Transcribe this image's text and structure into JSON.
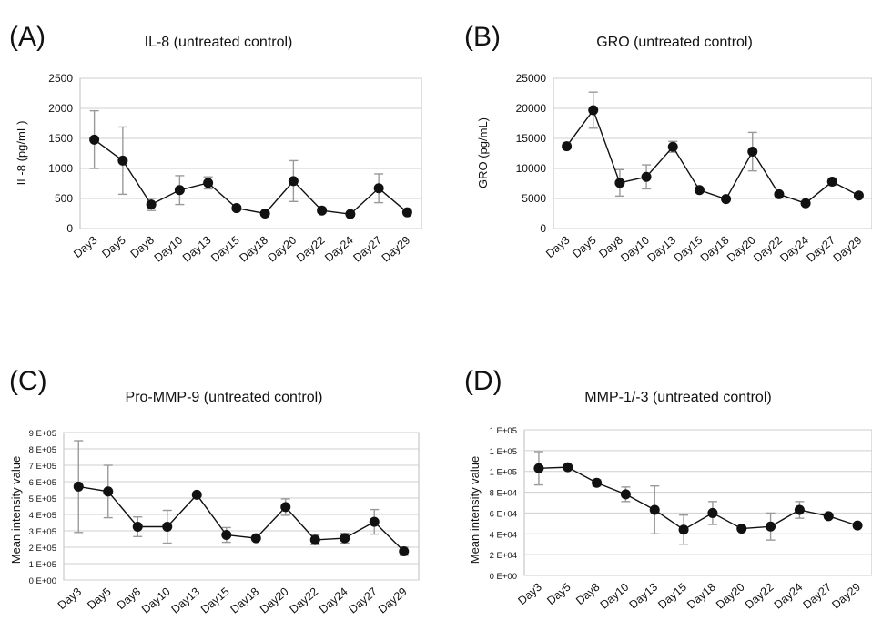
{
  "figure": {
    "panels": [
      "(A)",
      "(B)",
      "(C)",
      "(D)"
    ]
  },
  "chart_data": [
    {
      "type": "line",
      "panel": "(A)",
      "title": "IL-8 (untreated control)",
      "xlabel": "",
      "ylabel": "IL-8 (pg/mL)",
      "categories": [
        "Day3",
        "Day5",
        "Day8",
        "Day10",
        "Day13",
        "Day15",
        "Day18",
        "Day20",
        "Day22",
        "Day24",
        "Day27",
        "Day29"
      ],
      "values": [
        1480,
        1130,
        400,
        640,
        760,
        340,
        250,
        790,
        300,
        240,
        670,
        270
      ],
      "errors": [
        480,
        560,
        100,
        240,
        100,
        40,
        30,
        340,
        40,
        30,
        240,
        40
      ],
      "ylim": [
        0,
        2500
      ],
      "yticks": [
        0,
        500,
        1000,
        1500,
        2000,
        2500
      ],
      "ytick_labels": [
        "0",
        "500",
        "1000",
        "1500",
        "2000",
        "2500"
      ],
      "grid": true
    },
    {
      "type": "line",
      "panel": "(B)",
      "title": "GRO (untreated control)",
      "xlabel": "",
      "ylabel": "GRO (pg/mL)",
      "categories": [
        "Day3",
        "Day5",
        "Day8",
        "Day10",
        "Day13",
        "Day15",
        "Day18",
        "Day20",
        "Day22",
        "Day24",
        "Day27",
        "Day29"
      ],
      "values": [
        13700,
        19700,
        7600,
        8600,
        13600,
        6400,
        4900,
        12800,
        5700,
        4200,
        7800,
        5500
      ],
      "errors": [
        400,
        3000,
        2200,
        2000,
        900,
        300,
        300,
        3200,
        300,
        300,
        600,
        300
      ],
      "ylim": [
        0,
        25000
      ],
      "yticks": [
        0,
        5000,
        10000,
        15000,
        20000,
        25000
      ],
      "ytick_labels": [
        "0",
        "5000",
        "10000",
        "15000",
        "20000",
        "25000"
      ],
      "grid": true
    },
    {
      "type": "line",
      "panel": "(C)",
      "title": "Pro-MMP-9 (untreated control)",
      "xlabel": "",
      "ylabel": "Mean intensity value",
      "categories": [
        "Day3",
        "Day5",
        "Day8",
        "Day10",
        "Day13",
        "Day15",
        "Day18",
        "Day20",
        "Day22",
        "Day24",
        "Day27",
        "Day29"
      ],
      "values": [
        570000,
        540000,
        325000,
        325000,
        520000,
        275000,
        255000,
        445000,
        245000,
        255000,
        355000,
        175000
      ],
      "errors": [
        280000,
        160000,
        60000,
        100000,
        10000,
        45000,
        10000,
        50000,
        30000,
        30000,
        75000,
        25000
      ],
      "ylim": [
        0,
        900000
      ],
      "yticks": [
        0,
        100000,
        200000,
        300000,
        400000,
        500000,
        600000,
        700000,
        800000,
        900000
      ],
      "ytick_labels": [
        "0 E+00",
        "1 E+05",
        "2 E+05",
        "3 E+05",
        "4 E+05",
        "5 E+05",
        "6 E+05",
        "7 E+05",
        "8 E+05",
        "9 E+05"
      ],
      "grid": true
    },
    {
      "type": "line",
      "panel": "(D)",
      "title": "MMP-1/-3 (untreated control)",
      "xlabel": "",
      "ylabel": "Mean intensity value",
      "categories": [
        "Day3",
        "Day5",
        "Day8",
        "Day10",
        "Day13",
        "Day15",
        "Day18",
        "Day20",
        "Day22",
        "Day24",
        "Day27",
        "Day29"
      ],
      "values": [
        103000,
        104000,
        89000,
        78000,
        63000,
        44000,
        60000,
        45000,
        47000,
        63000,
        57000,
        48000
      ],
      "errors": [
        16000,
        2000,
        3000,
        7000,
        23000,
        14000,
        11000,
        2000,
        13000,
        8000,
        2000,
        2000
      ],
      "ylim": [
        0,
        140000
      ],
      "yticks": [
        0,
        20000,
        40000,
        60000,
        80000,
        100000,
        120000,
        140000
      ],
      "ytick_labels": [
        "0 E+00",
        "2 E+04",
        "4 E+04",
        "6 E+04",
        "8 E+04",
        "1 E+05",
        "1 E+05",
        "1 E+05"
      ],
      "grid": true
    }
  ]
}
